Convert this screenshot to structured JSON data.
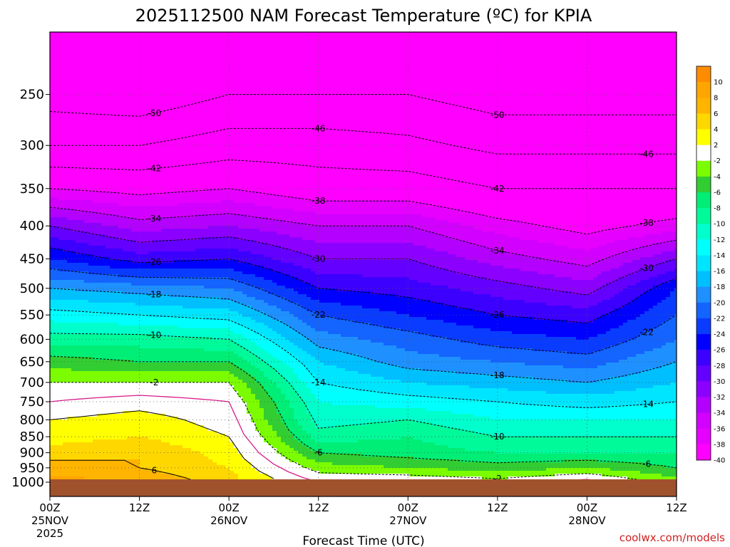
{
  "title": "2025112500 NAM Forecast Temperature (ºC) for KPIA",
  "xlabel": "Forecast Time (UTC)",
  "credit": "coolwx.com/models",
  "credit_color": "#d22020",
  "colors": {
    "ground": "#a0522d",
    "zero_contour": "#d81b8c",
    "grid": "#555555"
  },
  "chart_data": {
    "type": "heatmap",
    "title": "2025112500 NAM Forecast Temperature (ºC) for KPIA",
    "xlabel": "Forecast Time (UTC)",
    "ylabel": "",
    "x_hours_range": [
      0,
      84
    ],
    "y_pressure_range": [
      1000,
      200
    ],
    "y_scale": "log-pressure",
    "grid": true,
    "x_ticks": [
      {
        "hour": 0,
        "label": "00Z",
        "date": "25NOV",
        "year": "2025"
      },
      {
        "hour": 12,
        "label": "12Z",
        "date": "",
        "year": ""
      },
      {
        "hour": 24,
        "label": "00Z",
        "date": "26NOV",
        "year": ""
      },
      {
        "hour": 36,
        "label": "12Z",
        "date": "",
        "year": ""
      },
      {
        "hour": 48,
        "label": "00Z",
        "date": "27NOV",
        "year": ""
      },
      {
        "hour": 60,
        "label": "12Z",
        "date": "",
        "year": ""
      },
      {
        "hour": 72,
        "label": "00Z",
        "date": "28NOV",
        "year": ""
      },
      {
        "hour": 84,
        "label": "12Z",
        "date": "",
        "year": ""
      }
    ],
    "y_ticks": [
      "250",
      "300",
      "350",
      "400",
      "450",
      "500",
      "550",
      "600",
      "650",
      "700",
      "750",
      "800",
      "850",
      "900",
      "950",
      "1000"
    ],
    "y_values": [
      250,
      300,
      350,
      400,
      450,
      500,
      550,
      600,
      650,
      700,
      750,
      800,
      850,
      900,
      950,
      1000
    ],
    "colorbar": {
      "levels": [
        10,
        8,
        6,
        4,
        2,
        -2,
        -4,
        -6,
        -8,
        -10,
        -12,
        -14,
        -16,
        -18,
        -20,
        -22,
        -24,
        -26,
        -28,
        -30,
        -32,
        -34,
        -36,
        -38,
        -40
      ],
      "colors": [
        "#ff8c00",
        "#ffa500",
        "#ffb400",
        "#ffd700",
        "#ffff00",
        "#ffffff",
        "#7cfc00",
        "#32cd32",
        "#00ee76",
        "#00fa9a",
        "#00ffcc",
        "#00ffff",
        "#00e5ff",
        "#00bfff",
        "#1e90ff",
        "#1464ff",
        "#0a3cff",
        "#0000ff",
        "#3c00ff",
        "#6400ff",
        "#8c00ff",
        "#b400ff",
        "#d200ff",
        "#e600ff",
        "#ff00ff"
      ]
    },
    "temperature_profiles": {
      "hours": [
        0,
        12,
        24,
        36,
        48,
        60,
        72,
        84
      ],
      "profiles": [
        {
          "hour": 0,
          "temps_at_p": [
            [
              1000,
              9
            ],
            [
              950,
              7
            ],
            [
              900,
              5
            ],
            [
              850,
              3
            ],
            [
              800,
              2
            ],
            [
              750,
              0
            ],
            [
              700,
              -2
            ],
            [
              650,
              -5
            ],
            [
              600,
              -9
            ],
            [
              550,
              -13
            ],
            [
              500,
              -18
            ],
            [
              450,
              -24
            ],
            [
              400,
              -30
            ],
            [
              350,
              -38
            ],
            [
              300,
              -46
            ],
            [
              250,
              -52
            ]
          ]
        },
        {
          "hour": 12,
          "temps_at_p": [
            [
              1000,
              8
            ],
            [
              950,
              6
            ],
            [
              900,
              6
            ],
            [
              850,
              4
            ],
            [
              800,
              3
            ],
            [
              750,
              1
            ],
            [
              700,
              -2
            ],
            [
              650,
              -6
            ],
            [
              600,
              -9
            ],
            [
              550,
              -14
            ],
            [
              500,
              -19
            ],
            [
              450,
              -27
            ],
            [
              400,
              -33
            ],
            [
              350,
              -39
            ],
            [
              300,
              -46
            ],
            [
              250,
              -53
            ]
          ]
        },
        {
          "hour": 24,
          "temps_at_p": [
            [
              1000,
              5
            ],
            [
              950,
              4
            ],
            [
              900,
              3
            ],
            [
              850,
              2
            ],
            [
              800,
              1
            ],
            [
              750,
              0
            ],
            [
              700,
              -2
            ],
            [
              650,
              -6
            ],
            [
              600,
              -10
            ],
            [
              550,
              -15
            ],
            [
              500,
              -20
            ],
            [
              450,
              -26
            ],
            [
              400,
              -32
            ],
            [
              350,
              -38
            ],
            [
              300,
              -44
            ],
            [
              250,
              -50
            ]
          ]
        },
        {
          "hour": 36,
          "temps_at_p": [
            [
              1000,
              0
            ],
            [
              950,
              -3
            ],
            [
              900,
              -6
            ],
            [
              850,
              -9
            ],
            [
              800,
              -11
            ],
            [
              750,
              -12
            ],
            [
              700,
              -14
            ],
            [
              650,
              -16
            ],
            [
              600,
              -19
            ],
            [
              550,
              -22
            ],
            [
              500,
              -26
            ],
            [
              450,
              -30
            ],
            [
              400,
              -34
            ],
            [
              350,
              -40
            ],
            [
              300,
              -44
            ],
            [
              250,
              -50
            ]
          ]
        },
        {
          "hour": 48,
          "temps_at_p": [
            [
              1000,
              0
            ],
            [
              950,
              -4
            ],
            [
              900,
              -7
            ],
            [
              850,
              -8
            ],
            [
              800,
              -10
            ],
            [
              750,
              -13
            ],
            [
              700,
              -16
            ],
            [
              650,
              -19
            ],
            [
              600,
              -21
            ],
            [
              550,
              -24
            ],
            [
              500,
              -27
            ],
            [
              450,
              -30
            ],
            [
              400,
              -34
            ],
            [
              350,
              -40
            ],
            [
              300,
              -45
            ],
            [
              250,
              -50
            ]
          ]
        },
        {
          "hour": 60,
          "temps_at_p": [
            [
              1000,
              -1
            ],
            [
              950,
              -5
            ],
            [
              900,
              -8
            ],
            [
              850,
              -10
            ],
            [
              800,
              -12
            ],
            [
              750,
              -14
            ],
            [
              700,
              -17
            ],
            [
              650,
              -20
            ],
            [
              600,
              -23
            ],
            [
              550,
              -26
            ],
            [
              500,
              -29
            ],
            [
              450,
              -33
            ],
            [
              400,
              -37
            ],
            [
              350,
              -42
            ],
            [
              300,
              -47
            ],
            [
              250,
              -52
            ]
          ]
        },
        {
          "hour": 72,
          "temps_at_p": [
            [
              1000,
              1
            ],
            [
              950,
              -4
            ],
            [
              900,
              -8
            ],
            [
              850,
              -10
            ],
            [
              800,
              -12
            ],
            [
              750,
              -15
            ],
            [
              700,
              -18
            ],
            [
              650,
              -21
            ],
            [
              600,
              -24
            ],
            [
              550,
              -27
            ],
            [
              500,
              -31
            ],
            [
              450,
              -35
            ],
            [
              400,
              -39
            ],
            [
              350,
              -42
            ],
            [
              300,
              -47
            ],
            [
              250,
              -52
            ]
          ]
        },
        {
          "hour": 84,
          "temps_at_p": [
            [
              1000,
              -3
            ],
            [
              950,
              -6
            ],
            [
              900,
              -8
            ],
            [
              850,
              -10
            ],
            [
              800,
              -12
            ],
            [
              750,
              -14
            ],
            [
              700,
              -16
            ],
            [
              650,
              -18
            ],
            [
              600,
              -20
            ],
            [
              550,
              -22
            ],
            [
              500,
              -24
            ],
            [
              450,
              -30
            ],
            [
              400,
              -37
            ],
            [
              350,
              -42
            ],
            [
              300,
              -47
            ],
            [
              250,
              -52
            ]
          ]
        }
      ]
    },
    "contour_labels": [
      "-50",
      "-46",
      "-42",
      "-38",
      "-34",
      "-30",
      "-26",
      "-22",
      "-18",
      "-14",
      "-10",
      "-6",
      "-2",
      "2",
      "6",
      "-46",
      "-42",
      "-38",
      "-34",
      "-30",
      "-26",
      "-22",
      "-18",
      "-14",
      "-10",
      "-6",
      "-2",
      "-50",
      "-46",
      "-42",
      "-38",
      "-34",
      "-30",
      "-26",
      "-22",
      "-18",
      "-14",
      "-10",
      "-6",
      "-2",
      "2",
      "6",
      "-38",
      "-30",
      "-26",
      "-22",
      "-18",
      "-14",
      "-10",
      "-6"
    ]
  }
}
